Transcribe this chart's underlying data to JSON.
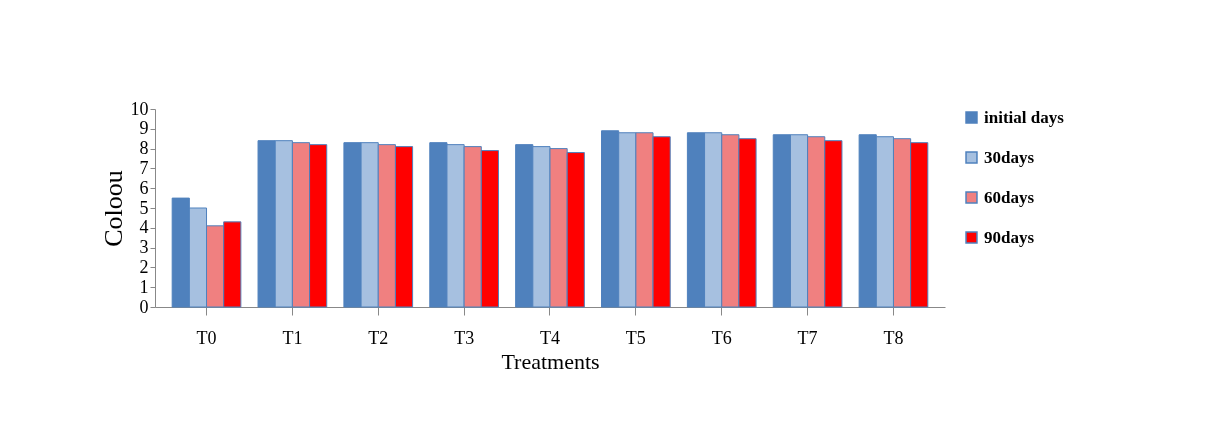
{
  "chart_data": {
    "type": "bar",
    "xlabel": "Treatments",
    "ylabel": "Coloou",
    "categories": [
      "T0",
      "T1",
      "T2",
      "T3",
      "T4",
      "T5",
      "T6",
      "T7",
      "T8"
    ],
    "series": [
      {
        "name": "initial days",
        "color": "#4f81bd",
        "values": [
          5.5,
          8.4,
          8.3,
          8.3,
          8.2,
          8.9,
          8.8,
          8.7,
          8.7
        ]
      },
      {
        "name": "30days",
        "color": "#a6c0e0",
        "values": [
          5.0,
          8.4,
          8.3,
          8.2,
          8.1,
          8.8,
          8.8,
          8.7,
          8.6
        ]
      },
      {
        "name": "60days",
        "color": "#f08080",
        "values": [
          4.1,
          8.3,
          8.2,
          8.1,
          8.0,
          8.8,
          8.7,
          8.6,
          8.5
        ]
      },
      {
        "name": "90days",
        "color": "#ff0000",
        "values": [
          4.3,
          8.2,
          8.1,
          7.9,
          7.8,
          8.6,
          8.5,
          8.4,
          8.3
        ]
      }
    ],
    "ylim": [
      0,
      10
    ],
    "yticks": [
      0,
      1,
      2,
      3,
      4,
      5,
      6,
      7,
      8,
      9,
      10
    ],
    "grid": false,
    "legend": "right"
  }
}
